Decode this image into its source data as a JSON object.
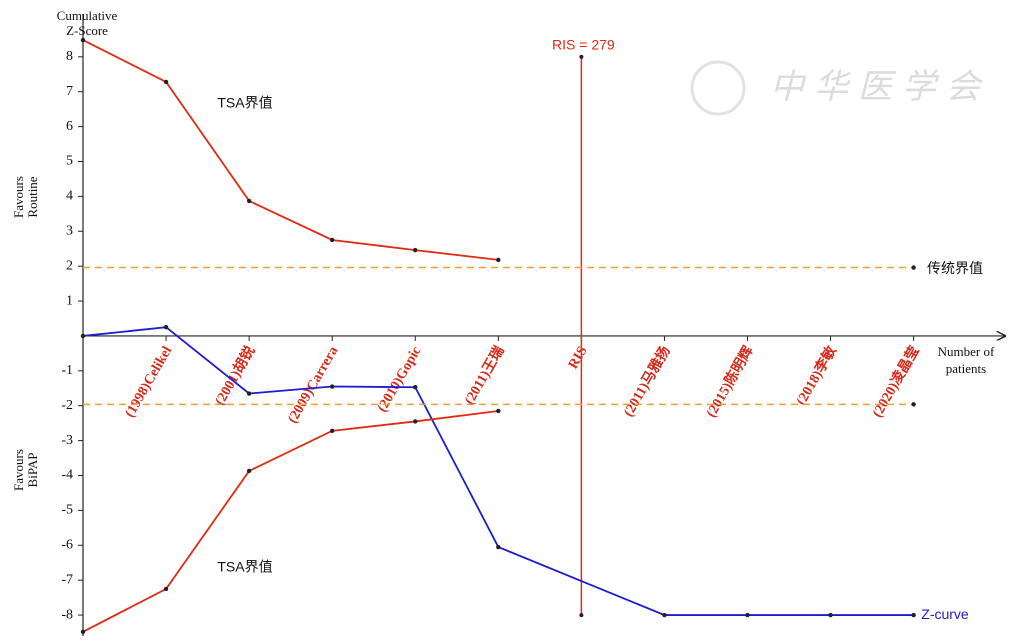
{
  "chart_data": {
    "type": "line",
    "ylabel": [
      "Cumulative",
      "Z-Score"
    ],
    "xlabel": [
      "Number of",
      "patients"
    ],
    "favours_upper": [
      "Favours",
      "Routine"
    ],
    "favours_lower": [
      "Favours",
      "BiPAP"
    ],
    "watermark": "中华医学会",
    "xlim": [
      0,
      11.1
    ],
    "ylim": [
      -8.6,
      9.6
    ],
    "xticks": [
      {
        "value": 1,
        "label": "(1998)Celikel"
      },
      {
        "value": 2,
        "label": "(2001)胡锐"
      },
      {
        "value": 3,
        "label": "(2009)Carrera"
      },
      {
        "value": 4,
        "label": "(2010)Gopic"
      },
      {
        "value": 5,
        "label": "(2011)王瑞"
      },
      {
        "value": 6,
        "label": "RIS"
      },
      {
        "value": 7,
        "label": "(2011)马雅扬"
      },
      {
        "value": 8,
        "label": "(2015)陈明辉"
      },
      {
        "value": 9,
        "label": "(2018)李敏"
      },
      {
        "value": 10,
        "label": "(2020)凌晶莹"
      }
    ],
    "yticks": [
      -8,
      -7,
      -6,
      -5,
      -4,
      -3,
      -2,
      -1,
      1,
      2,
      3,
      4,
      5,
      6,
      7,
      8
    ],
    "series": [
      {
        "name": "Z-curve",
        "color": "#1c1cd0",
        "x": [
          0,
          1,
          2,
          3,
          4,
          5,
          7,
          8,
          9,
          10
        ],
        "values": [
          0,
          0.25,
          -1.65,
          -1.45,
          -1.47,
          -6.05,
          -8,
          -8,
          -8,
          -8
        ]
      },
      {
        "name": "TSA界值",
        "color": "#e02a12",
        "x": [
          0,
          1,
          2,
          3,
          4,
          5
        ],
        "values": [
          8.48,
          7.28,
          3.87,
          2.75,
          2.46,
          2.18
        ]
      },
      {
        "name": "TSA界值",
        "color": "#e02a12",
        "x": [
          0,
          1,
          2,
          3,
          4,
          5
        ],
        "values": [
          -8.48,
          -7.25,
          -3.87,
          -2.72,
          -2.45,
          -2.15
        ]
      },
      {
        "name": "传统界值",
        "color": "#f0a030",
        "dashed": true,
        "x": [
          0,
          10
        ],
        "values": [
          1.96,
          1.96
        ]
      },
      {
        "color": "#f0a030",
        "dashed": true,
        "x": [
          0,
          10
        ],
        "values": [
          -1.96,
          -1.96
        ]
      }
    ],
    "ris": {
      "label": "RIS = 279",
      "x": 6,
      "range": [
        -8,
        8
      ],
      "color": "#e02a12"
    }
  }
}
